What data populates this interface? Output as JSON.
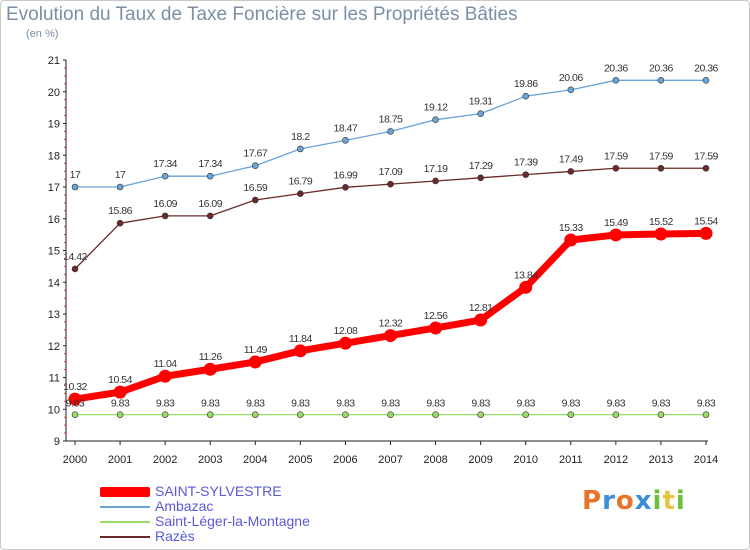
{
  "title": "Evolution du Taux de Taxe Foncière sur les Propriétés Bâties",
  "unit": "(en %)",
  "logo": {
    "text": "Proxiti",
    "colors": [
      "#e8732a",
      "#3a8fd8",
      "#e8732a",
      "#3a8fd8",
      "#6cbf3a",
      "#e8c43a",
      "#6cbf3a"
    ]
  },
  "chart_data": {
    "type": "line",
    "title": "Evolution du Taux de Taxe Foncière sur les Propriétés Bâties",
    "ylabel": "(en %)",
    "xlabel": "",
    "x": [
      "2000",
      "2001",
      "2002",
      "2003",
      "2004",
      "2005",
      "2006",
      "2007",
      "2008",
      "2009",
      "2010",
      "2011",
      "2012",
      "2013",
      "2014"
    ],
    "ylim": [
      9,
      21
    ],
    "yticks": [
      "9",
      "10",
      "11",
      "12",
      "13",
      "14",
      "15",
      "16",
      "17",
      "18",
      "19",
      "20",
      "21"
    ],
    "grid": false,
    "legend_position": "bottom-left",
    "series": [
      {
        "name": "SAINT-SYLVESTRE",
        "color": "#ff0000",
        "values": [
          10.32,
          10.54,
          11.04,
          11.26,
          11.49,
          11.84,
          12.08,
          12.32,
          12.56,
          12.81,
          13.84,
          15.33,
          15.49,
          15.52,
          15.54
        ],
        "labels": [
          "10.32",
          "10.54",
          "11.04",
          "11.26",
          "11.49",
          "11.84",
          "12.08",
          "12.32",
          "12.56",
          "12.81",
          "13.84",
          "15.33",
          "15.49",
          "15.52",
          "15.54"
        ]
      },
      {
        "name": "Ambazac",
        "color": "#6aa3d6",
        "values": [
          17,
          17,
          17.34,
          17.34,
          17.67,
          18.2,
          18.47,
          18.75,
          19.12,
          19.31,
          19.86,
          20.06,
          20.36,
          20.36,
          20.36
        ],
        "labels": [
          "17",
          "17",
          "17.34",
          "17.34",
          "17.67",
          "18.2",
          "18.47",
          "18.75",
          "19.12",
          "19.31",
          "19.86",
          "20.06",
          "20.36",
          "20.36",
          "20.36"
        ]
      },
      {
        "name": "Saint-Léger-la-Montagne",
        "color": "#99dd66",
        "values": [
          9.83,
          9.83,
          9.83,
          9.83,
          9.83,
          9.83,
          9.83,
          9.83,
          9.83,
          9.83,
          9.83,
          9.83,
          9.83,
          9.83,
          9.83
        ],
        "labels": [
          "9.83",
          "9.83",
          "9.83",
          "9.83",
          "9.83",
          "9.83",
          "9.83",
          "9.83",
          "9.83",
          "9.83",
          "9.83",
          "9.83",
          "9.83",
          "9.83",
          "9.83"
        ]
      },
      {
        "name": "Razès",
        "color": "#6b2a2a",
        "values": [
          14.42,
          15.86,
          16.09,
          16.09,
          16.59,
          16.79,
          16.99,
          17.09,
          17.19,
          17.29,
          17.39,
          17.49,
          17.59,
          17.59,
          17.59
        ],
        "labels": [
          "14.42",
          "15.86",
          "16.09",
          "16.09",
          "16.59",
          "16.79",
          "16.99",
          "17.09",
          "17.19",
          "17.29",
          "17.39",
          "17.49",
          "17.59",
          "17.59",
          "17.59"
        ]
      }
    ]
  }
}
